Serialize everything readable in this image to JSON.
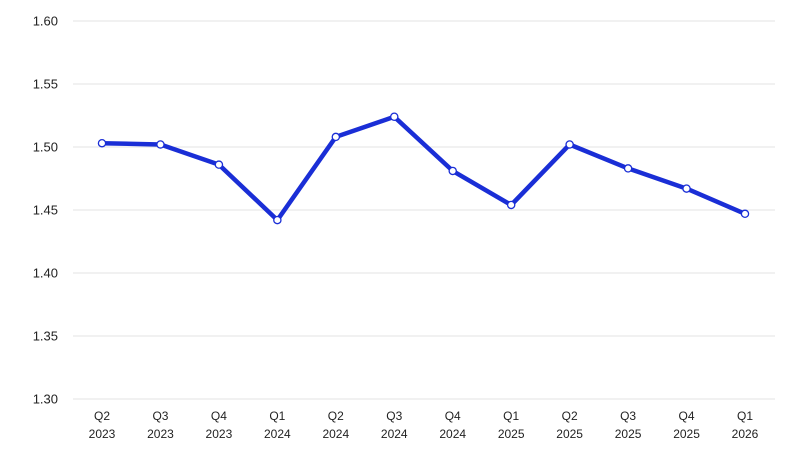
{
  "chart_data": {
    "type": "line",
    "title": "",
    "xlabel": "",
    "ylabel": "",
    "categories": [
      [
        "Q2",
        "2023"
      ],
      [
        "Q3",
        "2023"
      ],
      [
        "Q4",
        "2023"
      ],
      [
        "Q1",
        "2024"
      ],
      [
        "Q2",
        "2024"
      ],
      [
        "Q3",
        "2024"
      ],
      [
        "Q4",
        "2024"
      ],
      [
        "Q1",
        "2025"
      ],
      [
        "Q2",
        "2025"
      ],
      [
        "Q3",
        "2025"
      ],
      [
        "Q4",
        "2025"
      ],
      [
        "Q1",
        "2026"
      ]
    ],
    "yticks": [
      "1.30",
      "1.35",
      "1.40",
      "1.45",
      "1.50",
      "1.55",
      "1.60"
    ],
    "ylim": [
      1.3,
      1.6
    ],
    "grid": true,
    "series": [
      {
        "values": [
          1.503,
          1.502,
          1.486,
          1.442,
          1.508,
          1.524,
          1.481,
          1.454,
          1.502,
          1.483,
          1.467,
          1.447
        ],
        "color": "#1a2ed6",
        "markers": true
      }
    ]
  }
}
